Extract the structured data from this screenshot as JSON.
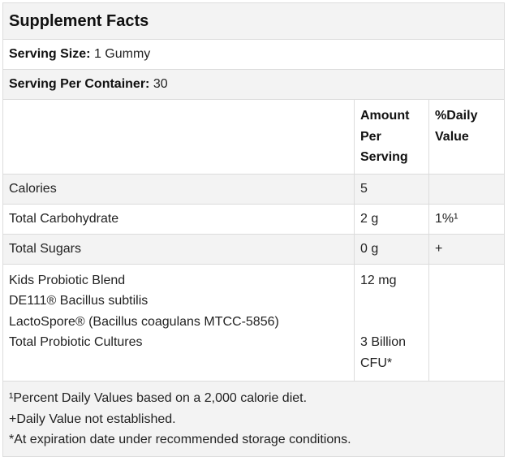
{
  "title": "Supplement Facts",
  "serving_size": {
    "label": "Serving Size:",
    "value": "1 Gummy"
  },
  "servings_per_container": {
    "label": "Serving Per Container:",
    "value": "30"
  },
  "headers": {
    "amount_line1": "Amount",
    "amount_line2": "Per",
    "amount_line3": "Serving",
    "dv_line1": "%Daily",
    "dv_line2": "Value"
  },
  "rows": [
    {
      "name": "Calories",
      "amount": "5",
      "dv": ""
    },
    {
      "name": "Total Carbohydrate",
      "amount": "2 g",
      "dv": "1%¹"
    },
    {
      "name": "Total Sugars",
      "amount": "0 g",
      "dv": "+"
    }
  ],
  "blend": {
    "name": "Kids Probiotic Blend",
    "ingredient1": "DE111® Bacillus subtilis",
    "ingredient2": "LactoSpore® (Bacillus coagulans MTCC-5856)",
    "amount": "12 mg",
    "cultures_label": "Total Probiotic Cultures",
    "cultures_amount_line1": "3 Billion",
    "cultures_amount_line2": "CFU*"
  },
  "footnotes": [
    "¹Percent Daily Values based on a 2,000 calorie diet.",
    "+Daily Value not established.",
    "*At expiration date under recommended storage conditions."
  ]
}
